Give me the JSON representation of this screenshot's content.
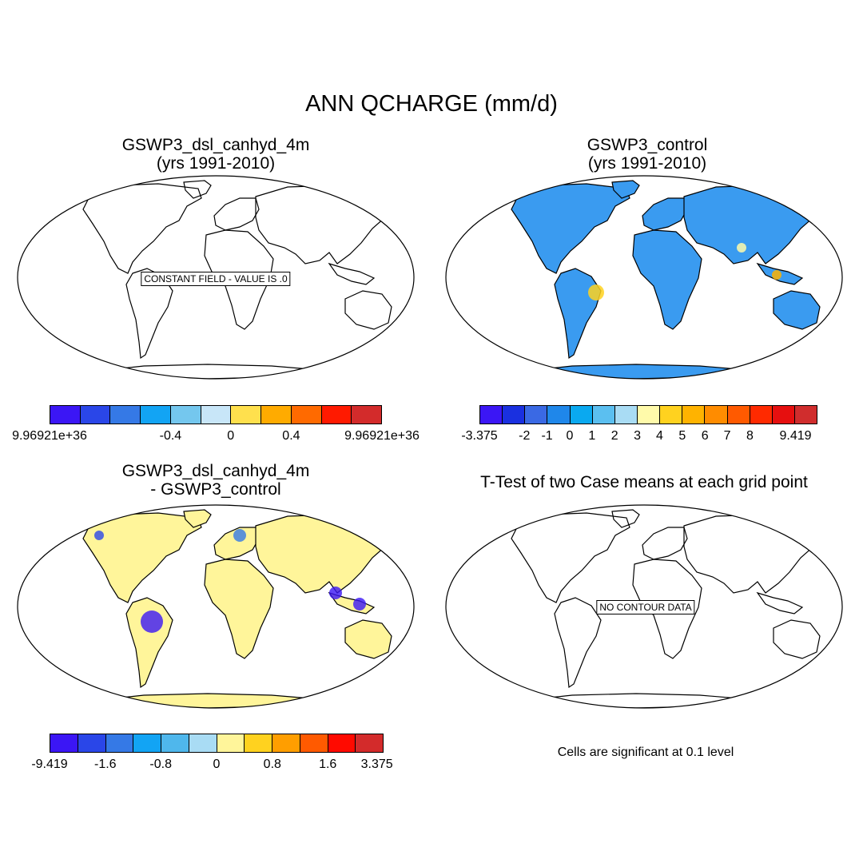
{
  "title": "ANN QCHARGE (mm/d)",
  "panels": [
    {
      "id": "case",
      "title_line1": "GSWP3_dsl_canhyd_4m",
      "title_line2": "(yrs 1991-2010)",
      "overlay_label": "CONSTANT FIELD - VALUE IS .0",
      "fill": "none",
      "colorbar": {
        "colors": [
          "#3b16f5",
          "#2a46e8",
          "#3579e6",
          "#12a4f4",
          "#74c7ee",
          "#c8e6f8",
          "#ffe04d",
          "#ffab00",
          "#ff6a00",
          "#ff1a00",
          "#d32b2b"
        ],
        "labels": [
          "9.96921e+36",
          "-0.4",
          "0",
          "0.4",
          "9.96921e+36"
        ]
      }
    },
    {
      "id": "control",
      "title_line1": "GSWP3_control",
      "title_line2": "(yrs 1991-2010)",
      "fill": "blue",
      "colorbar": {
        "colors": [
          "#3b16f5",
          "#1a30e0",
          "#3a69e4",
          "#1f87ea",
          "#0aa9f0",
          "#5bbff0",
          "#a9dcf4",
          "#fffaaa",
          "#ffd21f",
          "#ffb300",
          "#ff8c00",
          "#ff5a00",
          "#ff2a00",
          "#e60f0f",
          "#d02d2d"
        ],
        "labels": [
          "-3.375",
          "-2",
          "-1",
          "0",
          "1",
          "2",
          "3",
          "4",
          "5",
          "6",
          "7",
          "8",
          "9.419"
        ]
      }
    },
    {
      "id": "difference",
      "title_line1": "GSWP3_dsl_canhyd_4m",
      "title_line2": "- GSWP3_control",
      "fill": "yellow",
      "colorbar": {
        "colors": [
          "#3b16f5",
          "#2a46e8",
          "#3579e6",
          "#12a4f4",
          "#4fb7ec",
          "#a9dcf4",
          "#fff59a",
          "#ffd21f",
          "#ff9e00",
          "#ff5a00",
          "#ff0a00",
          "#d32b2b"
        ],
        "labels": [
          "-9.419",
          "-1.6",
          "-0.8",
          "0",
          "0.8",
          "1.6",
          "3.375"
        ]
      }
    },
    {
      "id": "ttest",
      "title_line1": "T-Test of two Case means at each grid point",
      "overlay_label": "NO CONTOUR DATA",
      "fill": "none",
      "footnote": "Cells are significant at 0.1 level"
    }
  ],
  "colors": {
    "outline": "#000000",
    "blue_fill": "#3a9bf0",
    "yellow_fill": "#fff59a",
    "deep_blue": "#3b16f5"
  }
}
